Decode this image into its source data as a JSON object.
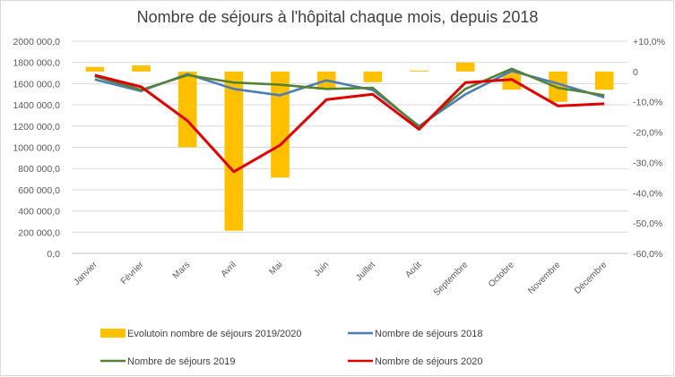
{
  "chart_data": {
    "type": "bar+line",
    "title": "Nombre de séjours à l'hôpital chaque mois, depuis 2018",
    "categories": [
      "Janvier",
      "Février",
      "Mars",
      "Avril",
      "Mai",
      "Juin",
      "Juillet",
      "Août",
      "Septembre",
      "Octobre",
      "Novembre",
      "Décembre"
    ],
    "y_left": {
      "range": [
        0,
        2000000
      ],
      "ticks": [
        0,
        200000,
        400000,
        600000,
        800000,
        1000000,
        1200000,
        1400000,
        1600000,
        1800000,
        2000000
      ],
      "tick_labels": [
        "0,0",
        "200 000,0",
        "400 000,0",
        "600 000,0",
        "800 000,0",
        "1000 000,0",
        "1200 000,0",
        "1400 000,0",
        "1600 000,0",
        "1800 000,0",
        "2000 000,0"
      ]
    },
    "y_right": {
      "range": [
        -0.6,
        0.1
      ],
      "ticks": [
        -0.6,
        -0.5,
        -0.4,
        -0.3,
        -0.2,
        -0.1,
        0,
        0.1
      ],
      "tick_labels": [
        "-60,0%",
        "-50,0%",
        "-40,0%",
        "-30,0%",
        "-20,0%",
        "-10,0%",
        "0",
        "+10,0%"
      ]
    },
    "grid": true,
    "legend_position": "bottom",
    "series": [
      {
        "name": "Evolutoin nombre de séjours 2019/2020",
        "kind": "bar",
        "axis": "right",
        "color": "#ffc000",
        "values": [
          0.015,
          0.02,
          -0.25,
          -0.525,
          -0.35,
          -0.06,
          -0.035,
          0.003,
          0.03,
          -0.06,
          -0.1,
          -0.06
        ]
      },
      {
        "name": "Nombre de séjours 2018",
        "kind": "line",
        "axis": "left",
        "color": "#4a7ebb",
        "values": [
          1640000,
          1530000,
          1690000,
          1550000,
          1490000,
          1630000,
          1540000,
          1200000,
          1500000,
          1720000,
          1600000,
          1470000
        ]
      },
      {
        "name": "Nombre de séjours 2019",
        "kind": "line",
        "axis": "left",
        "color": "#548235",
        "values": [
          1670000,
          1540000,
          1680000,
          1610000,
          1590000,
          1550000,
          1560000,
          1190000,
          1550000,
          1740000,
          1560000,
          1490000
        ]
      },
      {
        "name": "Nombre de séjours 2020",
        "kind": "line",
        "axis": "left",
        "color": "#e00000",
        "values": [
          1680000,
          1570000,
          1250000,
          770000,
          1020000,
          1450000,
          1500000,
          1170000,
          1610000,
          1640000,
          1390000,
          1410000
        ]
      }
    ]
  }
}
